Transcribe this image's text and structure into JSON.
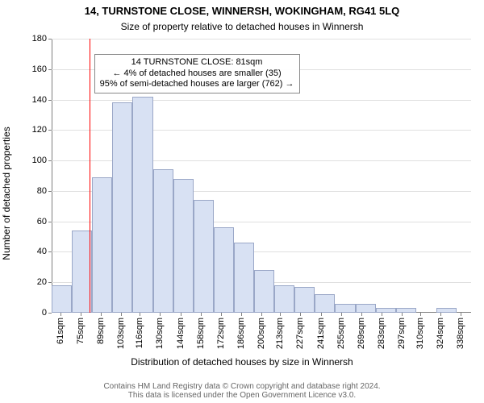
{
  "title_line1": "14, TURNSTONE CLOSE, WINNERSH, WOKINGHAM, RG41 5LQ",
  "title_line2": "Size of property relative to detached houses in Winnersh",
  "yaxis_label": "Number of detached properties",
  "xaxis_label": "Distribution of detached houses by size in Winnersh",
  "footer_line1": "Contains HM Land Registry data © Crown copyright and database right 2024.",
  "footer_line2": "This data is licensed under the Open Government Licence v3.0.",
  "chart": {
    "type": "histogram",
    "background_color": "#ffffff",
    "grid_color": "#e0e0e0",
    "axis_color": "#808080",
    "bar_fill": "#d8e1f3",
    "bar_border": "#9aa7c7",
    "marker_color": "#ff0000",
    "marker_x": 81,
    "ylim": [
      0,
      180
    ],
    "ytick_step": 20,
    "xlim": [
      55,
      345
    ],
    "bin_width": 14,
    "xticks": [
      61,
      75,
      89,
      103,
      116,
      130,
      144,
      158,
      172,
      186,
      200,
      213,
      227,
      241,
      255,
      269,
      283,
      297,
      310,
      324,
      338
    ],
    "xtick_labels": [
      "61sqm",
      "75sqm",
      "89sqm",
      "103sqm",
      "116sqm",
      "130sqm",
      "144sqm",
      "158sqm",
      "172sqm",
      "186sqm",
      "200sqm",
      "213sqm",
      "227sqm",
      "241sqm",
      "255sqm",
      "269sqm",
      "283sqm",
      "297sqm",
      "310sqm",
      "324sqm",
      "338sqm"
    ],
    "bins": [
      {
        "start": 55,
        "count": 18
      },
      {
        "start": 69,
        "count": 54
      },
      {
        "start": 83,
        "count": 89
      },
      {
        "start": 97,
        "count": 138
      },
      {
        "start": 111,
        "count": 142
      },
      {
        "start": 125,
        "count": 94
      },
      {
        "start": 139,
        "count": 88
      },
      {
        "start": 153,
        "count": 74
      },
      {
        "start": 167,
        "count": 56
      },
      {
        "start": 181,
        "count": 46
      },
      {
        "start": 195,
        "count": 28
      },
      {
        "start": 209,
        "count": 18
      },
      {
        "start": 223,
        "count": 17
      },
      {
        "start": 237,
        "count": 12
      },
      {
        "start": 251,
        "count": 6
      },
      {
        "start": 265,
        "count": 6
      },
      {
        "start": 279,
        "count": 3
      },
      {
        "start": 293,
        "count": 3
      },
      {
        "start": 307,
        "count": 0
      },
      {
        "start": 321,
        "count": 3
      },
      {
        "start": 335,
        "count": 0
      }
    ],
    "title_fontsize": 13,
    "subtitle_fontsize": 12,
    "axis_label_fontsize": 12,
    "tick_fontsize": 11,
    "annot_fontsize": 11,
    "footer_fontsize": 10
  },
  "annotation": {
    "line1": "14 TURNSTONE CLOSE: 81sqm",
    "line2": "← 4% of detached houses are smaller (35)",
    "line3": "95% of semi-detached houses are larger (762) →",
    "border_color": "#888888",
    "background": "rgba(255,255,255,0.92)"
  }
}
